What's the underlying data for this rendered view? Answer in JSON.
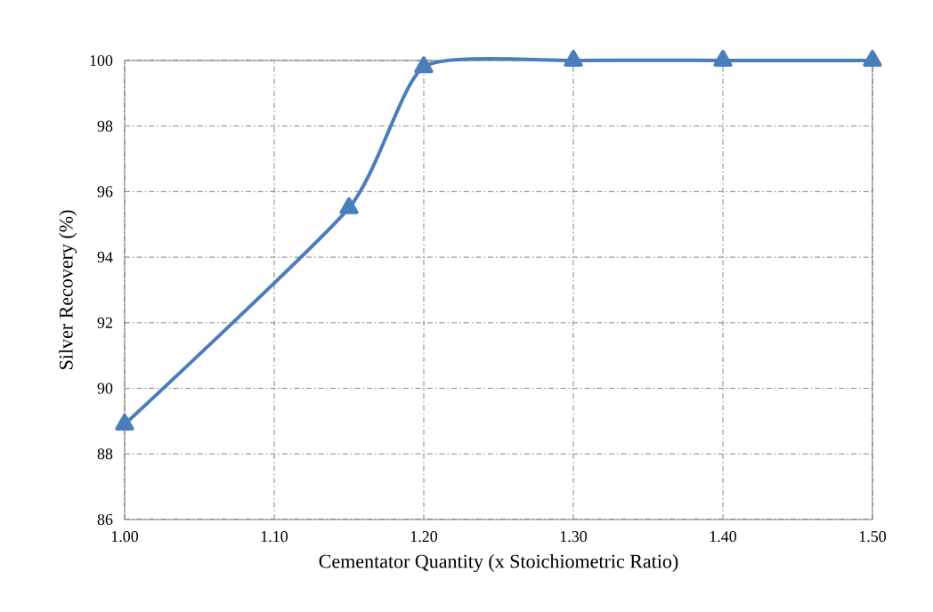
{
  "chart_data": {
    "type": "line",
    "xlabel": "Cementator Quantity (x Stoichiometric Ratio)",
    "ylabel": "Silver Recovery (%)",
    "x": [
      1.0,
      1.15,
      1.2,
      1.3,
      1.4,
      1.5
    ],
    "series": [
      {
        "color": "#4a7ebb",
        "values": [
          88.9,
          95.5,
          99.8,
          100,
          100,
          100
        ]
      }
    ],
    "xlim": [
      1.0,
      1.5
    ],
    "ylim": [
      86,
      100
    ],
    "xticks": [
      {
        "value": 1.0,
        "label": "1.00"
      },
      {
        "value": 1.1,
        "label": "1.10"
      },
      {
        "value": 1.2,
        "label": "1.20"
      },
      {
        "value": 1.3,
        "label": "1.30"
      },
      {
        "value": 1.4,
        "label": "1.40"
      },
      {
        "value": 1.5,
        "label": "1.50"
      }
    ],
    "yticks": [
      86,
      88,
      90,
      92,
      94,
      96,
      98,
      100
    ],
    "grid": true,
    "marker": "triangle",
    "line_style": "solid"
  }
}
